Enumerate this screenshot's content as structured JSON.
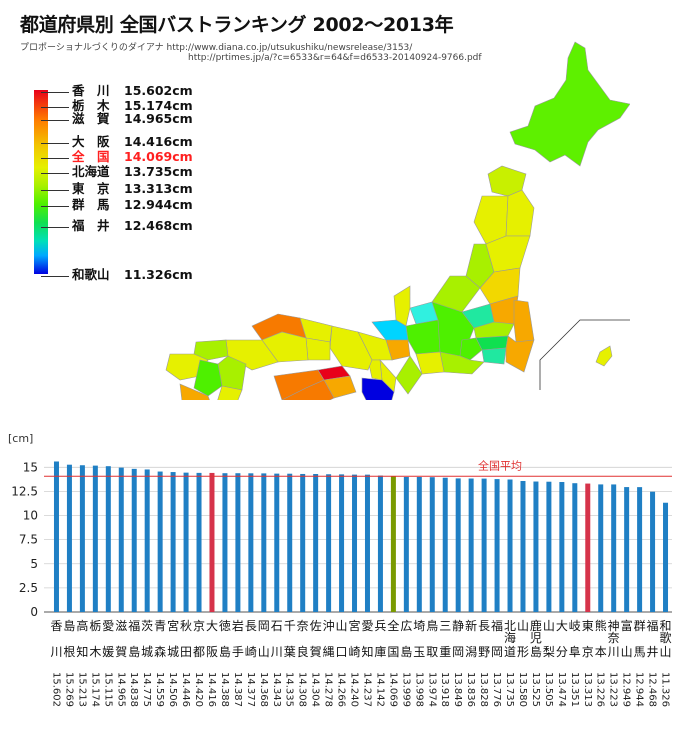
{
  "header": {
    "title": "都道府県別 全国バストランキング 2002〜2013年",
    "source_line1": "プロポーショナルづくりのダイアナ http://www.diana.co.jp/utsukushiku/newsrelease/3153/",
    "source_line2": "http://prtimes.jp/a/?c=6533&r=64&f=d6533-20140924-9766.pdf"
  },
  "legend": {
    "items": [
      {
        "pref": "香　川",
        "value": "15.602cm",
        "highlight": false
      },
      {
        "pref": "栃　木",
        "value": "15.174cm",
        "highlight": false
      },
      {
        "pref": "滋　賀",
        "value": "14.965cm",
        "highlight": false
      },
      {
        "pref": "大　阪",
        "value": "14.416cm",
        "highlight": false
      },
      {
        "pref": "全　国",
        "value": "14.069cm",
        "highlight": true
      },
      {
        "pref": "北海道",
        "value": "13.735cm",
        "highlight": false
      },
      {
        "pref": "東　京",
        "value": "13.313cm",
        "highlight": false
      },
      {
        "pref": "群　馬",
        "value": "12.944cm",
        "highlight": false
      },
      {
        "pref": "福　井",
        "value": "12.468cm",
        "highlight": false
      },
      {
        "pref": "和歌山",
        "value": "11.326cm",
        "highlight": false
      }
    ],
    "colors": {
      "max": "#e8001a",
      "min": "#0000e0",
      "highlight_text": "#ff2020"
    }
  },
  "map_colors": {
    "hokkaido": "#5ef000",
    "tohoku_yellow": "#e6f000",
    "tohoku_light": "#c8f000",
    "orange": "#f7a800",
    "deep_orange": "#f77a00",
    "red": "#e8001a",
    "green": "#4ef000",
    "cyan_green": "#20e8a0",
    "cyan": "#30f0e0",
    "blue": "#0000e0",
    "yellow": "#f2d800"
  },
  "chart_data": {
    "type": "bar",
    "ylabel": "[cm]",
    "ylim": [
      0,
      17
    ],
    "yticks": [
      0,
      2.5,
      5,
      7.5,
      10,
      12.5,
      15
    ],
    "reference_line": {
      "label": "全国平均",
      "value": 14.069,
      "color": "#e03030"
    },
    "colors": {
      "default": "#1f7fc4",
      "highlight": "#d6334a",
      "average": "#7a9a00"
    },
    "categories": [
      {
        "line1": "香",
        "line2": "川",
        "value": 15.602,
        "label": "15.602",
        "kind": "default"
      },
      {
        "line1": "島",
        "line2": "根",
        "value": 15.269,
        "label": "15.269",
        "kind": "default"
      },
      {
        "line1": "高",
        "line2": "知",
        "value": 15.213,
        "label": "15.213",
        "kind": "default"
      },
      {
        "line1": "栃",
        "line2": "木",
        "value": 15.174,
        "label": "15.174",
        "kind": "default"
      },
      {
        "line1": "愛",
        "line2": "媛",
        "value": 15.115,
        "label": "15.115",
        "kind": "default"
      },
      {
        "line1": "滋",
        "line2": "賀",
        "value": 14.965,
        "label": "14.965",
        "kind": "default"
      },
      {
        "line1": "福",
        "line2": "島",
        "value": 14.838,
        "label": "14.838",
        "kind": "default"
      },
      {
        "line1": "茨",
        "line2": "城",
        "value": 14.775,
        "label": "14.775",
        "kind": "default"
      },
      {
        "line1": "青",
        "line2": "森",
        "value": 14.559,
        "label": "14.559",
        "kind": "default"
      },
      {
        "line1": "宮",
        "line2": "城",
        "value": 14.506,
        "label": "14.506",
        "kind": "default"
      },
      {
        "line1": "秋",
        "line2": "田",
        "value": 14.446,
        "label": "14.446",
        "kind": "default"
      },
      {
        "line1": "京",
        "line2": "都",
        "value": 14.42,
        "label": "14.420",
        "kind": "default"
      },
      {
        "line1": "大",
        "line2": "阪",
        "value": 14.416,
        "label": "14.416",
        "kind": "highlight"
      },
      {
        "line1": "徳",
        "line2": "島",
        "value": 14.388,
        "label": "14.388",
        "kind": "default"
      },
      {
        "line1": "岩",
        "line2": "手",
        "value": 14.387,
        "label": "14.387",
        "kind": "default"
      },
      {
        "line1": "長",
        "line2": "崎",
        "value": 14.377,
        "label": "14.377",
        "kind": "default"
      },
      {
        "line1": "岡",
        "line2": "山",
        "value": 14.368,
        "label": "14.368",
        "kind": "default"
      },
      {
        "line1": "石",
        "line2": "川",
        "value": 14.343,
        "label": "14.343",
        "kind": "default"
      },
      {
        "line1": "千",
        "line2": "葉",
        "value": 14.335,
        "label": "14.335",
        "kind": "default"
      },
      {
        "line1": "奈",
        "line2": "良",
        "value": 14.308,
        "label": "14.308",
        "kind": "default"
      },
      {
        "line1": "佐",
        "line2": "賀",
        "value": 14.304,
        "label": "14.304",
        "kind": "default"
      },
      {
        "line1": "沖",
        "line2": "縄",
        "value": 14.278,
        "label": "14.278",
        "kind": "default"
      },
      {
        "line1": "山",
        "line2": "口",
        "value": 14.266,
        "label": "14.266",
        "kind": "default"
      },
      {
        "line1": "宮",
        "line2": "崎",
        "value": 14.24,
        "label": "14.240",
        "kind": "default"
      },
      {
        "line1": "愛",
        "line2": "知",
        "value": 14.237,
        "label": "14.237",
        "kind": "default"
      },
      {
        "line1": "兵",
        "line2": "庫",
        "value": 14.142,
        "label": "14.142",
        "kind": "default"
      },
      {
        "line1": "全",
        "line2": "国",
        "value": 14.069,
        "label": "14.069",
        "kind": "average"
      },
      {
        "line1": "広",
        "line2": "島",
        "value": 13.999,
        "label": "13.999",
        "kind": "default"
      },
      {
        "line1": "埼",
        "line2": "玉",
        "value": 13.998,
        "label": "13.998",
        "kind": "default"
      },
      {
        "line1": "鳥",
        "line2": "取",
        "value": 13.974,
        "label": "13.974",
        "kind": "default"
      },
      {
        "line1": "三",
        "line2": "重",
        "value": 13.918,
        "label": "13.918",
        "kind": "default"
      },
      {
        "line1": "静",
        "line2": "岡",
        "value": 13.849,
        "label": "13.849",
        "kind": "default"
      },
      {
        "line1": "新",
        "line2": "潟",
        "value": 13.836,
        "label": "13.836",
        "kind": "default"
      },
      {
        "line1": "長",
        "line2": "野",
        "value": 13.828,
        "label": "13.828",
        "kind": "default"
      },
      {
        "line1": "福",
        "line2": "岡",
        "value": 13.776,
        "label": "13.776",
        "kind": "default"
      },
      {
        "line1": "北",
        "line2": "海道",
        "value": 13.735,
        "label": "13.735",
        "kind": "default"
      },
      {
        "line1": "山",
        "line2": "形",
        "value": 13.58,
        "label": "13.580",
        "kind": "default"
      },
      {
        "line1": "鹿",
        "line2": "児島",
        "value": 13.525,
        "label": "13.525",
        "kind": "default"
      },
      {
        "line1": "山",
        "line2": "梨",
        "value": 13.505,
        "label": "13.505",
        "kind": "default"
      },
      {
        "line1": "大",
        "line2": "分",
        "value": 13.474,
        "label": "13.474",
        "kind": "default"
      },
      {
        "line1": "岐",
        "line2": "阜",
        "value": 13.351,
        "label": "13.351",
        "kind": "default"
      },
      {
        "line1": "東",
        "line2": "京",
        "value": 13.313,
        "label": "13.313",
        "kind": "highlight"
      },
      {
        "line1": "熊",
        "line2": "本",
        "value": 13.226,
        "label": "13.226",
        "kind": "default"
      },
      {
        "line1": "神",
        "line2": "奈川",
        "value": 13.223,
        "label": "13.223",
        "kind": "default"
      },
      {
        "line1": "富",
        "line2": "山",
        "value": 12.949,
        "label": "12.949",
        "kind": "default"
      },
      {
        "line1": "群",
        "line2": "馬",
        "value": 12.944,
        "label": "12.944",
        "kind": "default"
      },
      {
        "line1": "福",
        "line2": "井",
        "value": 12.468,
        "label": "12.468",
        "kind": "default"
      },
      {
        "line1": "和",
        "line2": "歌山",
        "value": 11.326,
        "label": "11.326",
        "kind": "default"
      }
    ]
  }
}
